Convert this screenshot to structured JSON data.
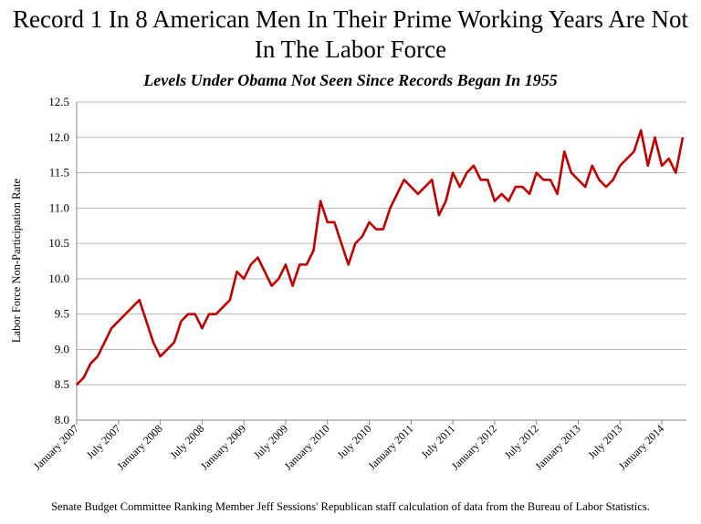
{
  "chart_data": {
    "type": "line",
    "title": "Record 1 In 8 American Men In Their Prime Working Years Are Not In The Labor Force",
    "subtitle": "Levels Under Obama Not Seen Since Records Began In 1955",
    "xlabel": "",
    "ylabel": "Labor Force Non-Participation Rate",
    "ylim": [
      8.0,
      12.5
    ],
    "yticks": [
      "8.0",
      "8.5",
      "9.0",
      "9.5",
      "10.0",
      "10.5",
      "11.0",
      "11.5",
      "12.0",
      "12.5"
    ],
    "x_start": "January 2007",
    "x_frequency": "monthly",
    "xtick_labels": [
      "January 2007",
      "July 2007",
      "January 2008",
      "July 2008",
      "January 2009",
      "July 2009",
      "January 2010",
      "July 2010",
      "January 2011",
      "July 2011",
      "January 2012",
      "July 2012",
      "January 2013",
      "July 2013",
      "January 2014"
    ],
    "grid": "horizontal",
    "line_color": "#C00000",
    "values": [
      8.5,
      8.6,
      8.8,
      8.9,
      9.1,
      9.3,
      9.4,
      9.5,
      9.6,
      9.7,
      9.4,
      9.1,
      8.9,
      9.0,
      9.1,
      9.4,
      9.5,
      9.5,
      9.3,
      9.5,
      9.5,
      9.6,
      9.7,
      10.1,
      10.0,
      10.2,
      10.3,
      10.1,
      9.9,
      10.0,
      10.2,
      9.9,
      10.2,
      10.2,
      10.4,
      11.1,
      10.8,
      10.8,
      10.5,
      10.2,
      10.5,
      10.6,
      10.8,
      10.7,
      10.7,
      11.0,
      11.2,
      11.4,
      11.3,
      11.2,
      11.3,
      11.4,
      10.9,
      11.1,
      11.5,
      11.3,
      11.5,
      11.6,
      11.4,
      11.4,
      11.1,
      11.2,
      11.1,
      11.3,
      11.3,
      11.2,
      11.5,
      11.4,
      11.4,
      11.2,
      11.8,
      11.5,
      11.4,
      11.3,
      11.6,
      11.4,
      11.3,
      11.4,
      11.6,
      11.7,
      11.8,
      12.1,
      11.6,
      12.0,
      11.6,
      11.7,
      11.5,
      12.0
    ]
  },
  "footnote": "Senate Budget Committee Ranking Member Jeff Sessions' Republican staff calculation of data from the Bureau of Labor Statistics."
}
